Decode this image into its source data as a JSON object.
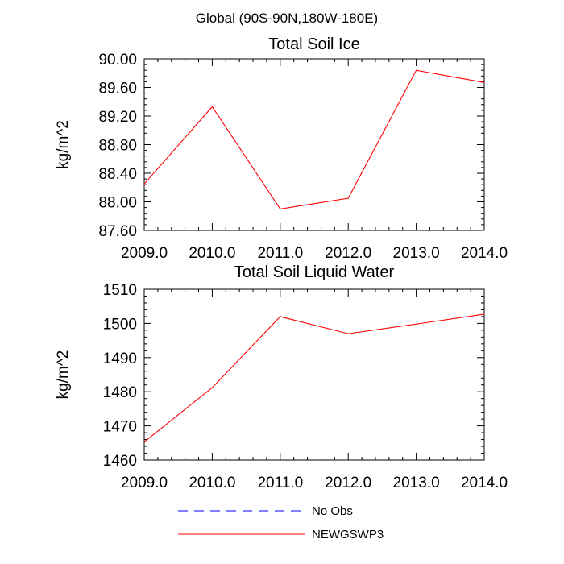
{
  "figure_title": "Global (90S-90N,180W-180E)",
  "chart_data": [
    {
      "type": "line",
      "title": "Total Soil Ice",
      "xlabel": "",
      "ylabel": "kg/m^2",
      "x": [
        2009,
        2010,
        2011,
        2012,
        2013,
        2014
      ],
      "xlim": [
        2009,
        2014
      ],
      "xticks": [
        "2009.0",
        "2010.0",
        "2011.0",
        "2012.0",
        "2013.0",
        "2014.0"
      ],
      "ylim": [
        87.6,
        90.0
      ],
      "yticks": [
        "87.60",
        "88.00",
        "88.40",
        "88.80",
        "89.20",
        "89.60",
        "90.00"
      ],
      "grid": false,
      "series": [
        {
          "name": "NEWGSWP3",
          "color": "#ff0000",
          "style": "solid",
          "values": [
            88.25,
            89.33,
            87.9,
            88.05,
            89.84,
            89.67
          ]
        }
      ]
    },
    {
      "type": "line",
      "title": "Total Soil Liquid Water",
      "xlabel": "",
      "ylabel": "kg/m^2",
      "x": [
        2009,
        2010,
        2011,
        2012,
        2013,
        2014
      ],
      "xlim": [
        2009,
        2014
      ],
      "xticks": [
        "2009.0",
        "2010.0",
        "2011.0",
        "2012.0",
        "2013.0",
        "2014.0"
      ],
      "ylim": [
        1460,
        1510
      ],
      "yticks": [
        "1460",
        "1470",
        "1480",
        "1490",
        "1500",
        "1510"
      ],
      "grid": false,
      "series": [
        {
          "name": "NEWGSWP3",
          "color": "#ff0000",
          "style": "solid",
          "values": [
            1465.3,
            1481.2,
            1502.0,
            1497.0,
            1499.8,
            1502.7
          ]
        }
      ]
    }
  ],
  "legend": {
    "placement": "bottom",
    "items": [
      {
        "label": "No Obs",
        "color": "#0000ff",
        "style": "dashed"
      },
      {
        "label": "NEWGSWP3",
        "color": "#ff0000",
        "style": "solid"
      }
    ]
  }
}
